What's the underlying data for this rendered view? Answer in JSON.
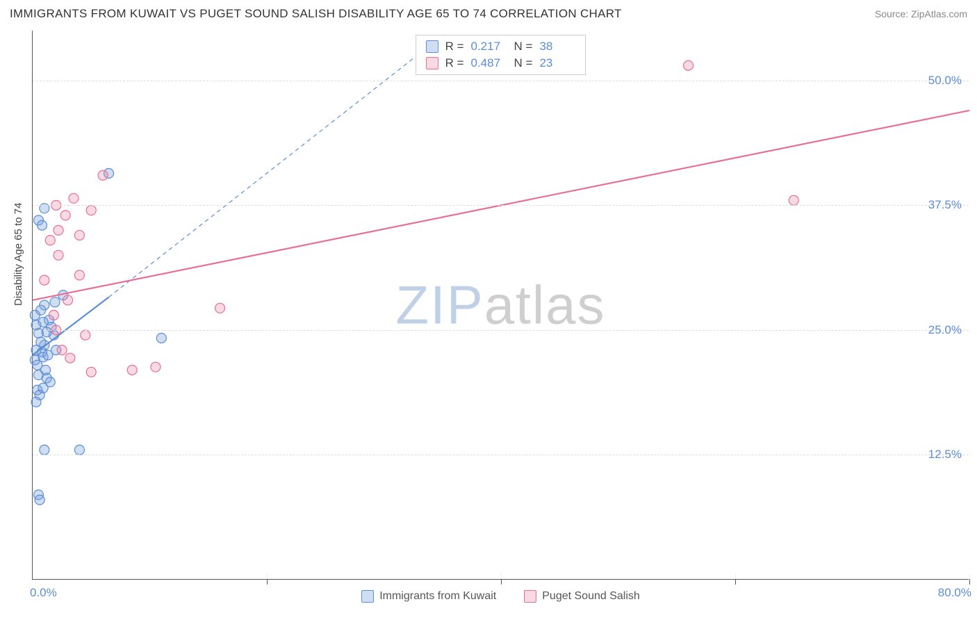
{
  "title": "IMMIGRANTS FROM KUWAIT VS PUGET SOUND SALISH DISABILITY AGE 65 TO 74 CORRELATION CHART",
  "source_label": "Source: ",
  "source_name": "ZipAtlas.com",
  "ylabel": "Disability Age 65 to 74",
  "watermark_a": "ZIP",
  "watermark_b": "atlas",
  "chart": {
    "type": "scatter",
    "xlim": [
      0,
      80
    ],
    "ylim": [
      0,
      55
    ],
    "y_ticks": [
      12.5,
      25.0,
      37.5,
      50.0
    ],
    "y_tick_labels": [
      "12.5%",
      "25.0%",
      "37.5%",
      "50.0%"
    ],
    "x_ticks": [
      20,
      40,
      60,
      80
    ],
    "x_min_label": "0.0%",
    "x_max_label": "80.0%",
    "grid_color": "#dddddd",
    "background_color": "#ffffff",
    "axis_color": "#555555",
    "series": [
      {
        "name": "Immigrants from Kuwait",
        "color_fill": "rgba(120, 160, 220, 0.35)",
        "color_stroke": "#5b8dd6",
        "marker_radius": 7,
        "R": "0.217",
        "N": "38",
        "trend": {
          "x1": 0,
          "y1": 22.5,
          "x2": 6.5,
          "y2": 28.3,
          "dash": false,
          "width": 2.2
        },
        "trend_ext": {
          "x1": 6.5,
          "y1": 28.3,
          "x2": 35,
          "y2": 54.5,
          "dash": true,
          "width": 1.2
        },
        "points": [
          [
            0.2,
            22.0
          ],
          [
            0.5,
            24.7
          ],
          [
            0.8,
            22.8
          ],
          [
            1.0,
            27.5
          ],
          [
            1.2,
            20.2
          ],
          [
            0.4,
            19.0
          ],
          [
            0.6,
            18.5
          ],
          [
            1.5,
            19.8
          ],
          [
            0.3,
            25.5
          ],
          [
            1.0,
            23.5
          ],
          [
            0.9,
            22.3
          ],
          [
            1.9,
            27.8
          ],
          [
            2.6,
            28.5
          ],
          [
            0.5,
            36.0
          ],
          [
            1.0,
            37.2
          ],
          [
            0.8,
            35.5
          ],
          [
            6.5,
            40.7
          ],
          [
            0.5,
            20.5
          ],
          [
            1.3,
            22.5
          ],
          [
            0.7,
            23.8
          ],
          [
            1.4,
            26.0
          ],
          [
            1.8,
            24.5
          ],
          [
            0.3,
            17.8
          ],
          [
            0.9,
            19.2
          ],
          [
            1.1,
            21.0
          ],
          [
            11.0,
            24.2
          ],
          [
            1.0,
            13.0
          ],
          [
            4.0,
            13.0
          ],
          [
            0.5,
            8.5
          ],
          [
            0.6,
            8.0
          ],
          [
            0.4,
            21.5
          ],
          [
            2.0,
            23.0
          ],
          [
            1.6,
            25.3
          ],
          [
            0.2,
            26.5
          ],
          [
            0.7,
            27.0
          ],
          [
            1.2,
            24.8
          ],
          [
            0.3,
            23.0
          ],
          [
            0.9,
            25.8
          ]
        ]
      },
      {
        "name": "Puget Sound Salish",
        "color_fill": "rgba(235, 130, 160, 0.30)",
        "color_stroke": "#e76f94",
        "marker_radius": 7,
        "R": "0.487",
        "N": "23",
        "trend": {
          "x1": 0,
          "y1": 28.0,
          "x2": 80,
          "y2": 47.0,
          "dash": false,
          "width": 2.2
        },
        "points": [
          [
            2.0,
            37.5
          ],
          [
            3.5,
            38.2
          ],
          [
            5.0,
            37.0
          ],
          [
            2.2,
            35.0
          ],
          [
            1.5,
            34.0
          ],
          [
            4.0,
            34.5
          ],
          [
            1.0,
            30.0
          ],
          [
            2.2,
            32.5
          ],
          [
            2.0,
            25.0
          ],
          [
            4.5,
            24.5
          ],
          [
            3.2,
            22.2
          ],
          [
            2.5,
            23.0
          ],
          [
            5.0,
            20.8
          ],
          [
            8.5,
            21.0
          ],
          [
            10.5,
            21.3
          ],
          [
            6.0,
            40.5
          ],
          [
            16.0,
            27.2
          ],
          [
            3.0,
            28.0
          ],
          [
            4.0,
            30.5
          ],
          [
            2.8,
            36.5
          ],
          [
            56.0,
            51.5
          ],
          [
            65.0,
            38.0
          ],
          [
            1.8,
            26.5
          ]
        ]
      }
    ]
  },
  "bottom_legend": [
    {
      "label": "Immigrants from Kuwait",
      "fill": "rgba(120,160,220,0.35)",
      "stroke": "#5b8dd6"
    },
    {
      "label": "Puget Sound Salish",
      "fill": "rgba(235,130,160,0.30)",
      "stroke": "#e76f94"
    }
  ],
  "stats_labels": {
    "R": "R  =",
    "N": "N  ="
  }
}
